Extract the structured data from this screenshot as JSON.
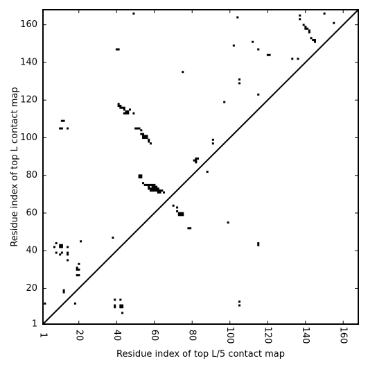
{
  "chart_data": {
    "type": "scatter",
    "xlabel": "Residue index of top L/5 contact map",
    "ylabel": "Residue index of top L contact map",
    "xlim": [
      1,
      168
    ],
    "ylim": [
      1,
      168
    ],
    "x_ticks": [
      1,
      20,
      40,
      60,
      80,
      100,
      120,
      140,
      160
    ],
    "y_ticks": [
      1,
      20,
      40,
      60,
      80,
      100,
      120,
      140,
      160
    ],
    "x_tick_labels": [
      "1",
      "20",
      "40",
      "60",
      "80",
      "100",
      "120",
      "140",
      "160"
    ],
    "y_tick_labels": [
      "1",
      "20",
      "40",
      "60",
      "80",
      "100",
      "120",
      "140",
      "160"
    ],
    "grid": false,
    "diagonal": true,
    "marker_color": "#000000",
    "upper_triangle_points": [
      [
        40,
        147
      ],
      [
        41,
        147
      ],
      [
        49,
        166
      ],
      [
        75,
        135
      ],
      [
        97,
        119
      ],
      [
        102,
        149
      ],
      [
        104,
        164
      ],
      [
        105,
        131
      ],
      [
        105,
        129
      ],
      [
        112,
        151
      ],
      [
        115,
        147
      ],
      [
        115,
        123
      ],
      [
        120,
        144
      ],
      [
        121,
        144
      ],
      [
        133,
        142
      ],
      [
        136,
        142
      ],
      [
        137,
        165
      ],
      [
        137,
        163
      ],
      [
        139,
        160
      ],
      [
        140,
        159
      ],
      [
        140,
        158
      ],
      [
        141,
        158
      ],
      [
        142,
        157
      ],
      [
        142,
        156
      ],
      [
        143,
        153
      ],
      [
        144,
        152
      ],
      [
        145,
        152
      ],
      [
        145,
        151
      ],
      [
        150,
        166
      ],
      [
        155,
        161
      ],
      [
        11,
        109
      ],
      [
        12,
        109
      ],
      [
        10,
        105
      ],
      [
        11,
        105
      ],
      [
        14,
        105
      ],
      [
        41,
        118
      ],
      [
        41,
        117
      ],
      [
        42,
        117
      ],
      [
        42,
        116
      ],
      [
        43,
        116
      ],
      [
        44,
        116
      ],
      [
        44,
        115
      ],
      [
        45,
        114
      ],
      [
        46,
        114
      ],
      [
        47,
        115
      ],
      [
        44,
        113
      ],
      [
        45,
        113
      ],
      [
        46,
        113
      ],
      [
        49,
        113
      ],
      [
        50,
        105
      ],
      [
        51,
        105
      ],
      [
        52,
        105
      ],
      [
        53,
        104
      ],
      [
        53,
        102
      ],
      [
        54,
        102
      ],
      [
        54,
        101
      ],
      [
        55,
        101
      ],
      [
        56,
        101
      ],
      [
        54,
        100
      ],
      [
        55,
        100
      ],
      [
        56,
        100
      ],
      [
        57,
        99
      ],
      [
        57,
        98
      ],
      [
        58,
        97
      ],
      [
        82,
        89
      ],
      [
        83,
        89
      ],
      [
        81,
        88
      ],
      [
        82,
        88
      ],
      [
        82,
        87
      ],
      [
        88,
        82
      ],
      [
        91,
        99
      ],
      [
        91,
        97
      ]
    ],
    "lower_triangle_points": [
      [
        2,
        12
      ],
      [
        7,
        42
      ],
      [
        8,
        44
      ],
      [
        8,
        39
      ],
      [
        10,
        43
      ],
      [
        11,
        43
      ],
      [
        10,
        42
      ],
      [
        11,
        42
      ],
      [
        11,
        39
      ],
      [
        10,
        38
      ],
      [
        12,
        19
      ],
      [
        12,
        18
      ],
      [
        14,
        42
      ],
      [
        14,
        39
      ],
      [
        14,
        38
      ],
      [
        14,
        35
      ],
      [
        18,
        12
      ],
      [
        19,
        31
      ],
      [
        19,
        30
      ],
      [
        20,
        30
      ],
      [
        19,
        27
      ],
      [
        20,
        27
      ],
      [
        20,
        33
      ],
      [
        21,
        45
      ],
      [
        38,
        47
      ],
      [
        39,
        14
      ],
      [
        39,
        11
      ],
      [
        39,
        10
      ],
      [
        42,
        14
      ],
      [
        42,
        11
      ],
      [
        42,
        10
      ],
      [
        43,
        11
      ],
      [
        43,
        10
      ],
      [
        43,
        7
      ],
      [
        52,
        80
      ],
      [
        53,
        80
      ],
      [
        52,
        79
      ],
      [
        53,
        79
      ],
      [
        54,
        76
      ],
      [
        55,
        75
      ],
      [
        56,
        75
      ],
      [
        57,
        75
      ],
      [
        58,
        75
      ],
      [
        59,
        75
      ],
      [
        60,
        75
      ],
      [
        57,
        74
      ],
      [
        59,
        74
      ],
      [
        60,
        74
      ],
      [
        61,
        74
      ],
      [
        57,
        73
      ],
      [
        58,
        73
      ],
      [
        59,
        73
      ],
      [
        60,
        73
      ],
      [
        61,
        73
      ],
      [
        62,
        73
      ],
      [
        58,
        72
      ],
      [
        59,
        72
      ],
      [
        60,
        72
      ],
      [
        61,
        72
      ],
      [
        62,
        72
      ],
      [
        63,
        72
      ],
      [
        64,
        72
      ],
      [
        62,
        71
      ],
      [
        63,
        71
      ],
      [
        65,
        71
      ],
      [
        70,
        64
      ],
      [
        72,
        63
      ],
      [
        72,
        61
      ],
      [
        73,
        60
      ],
      [
        74,
        60
      ],
      [
        75,
        60
      ],
      [
        73,
        59
      ],
      [
        74,
        59
      ],
      [
        75,
        59
      ],
      [
        78,
        52
      ],
      [
        79,
        52
      ],
      [
        99,
        55
      ],
      [
        105,
        13
      ],
      [
        105,
        11
      ],
      [
        115,
        44
      ],
      [
        115,
        43
      ]
    ]
  }
}
